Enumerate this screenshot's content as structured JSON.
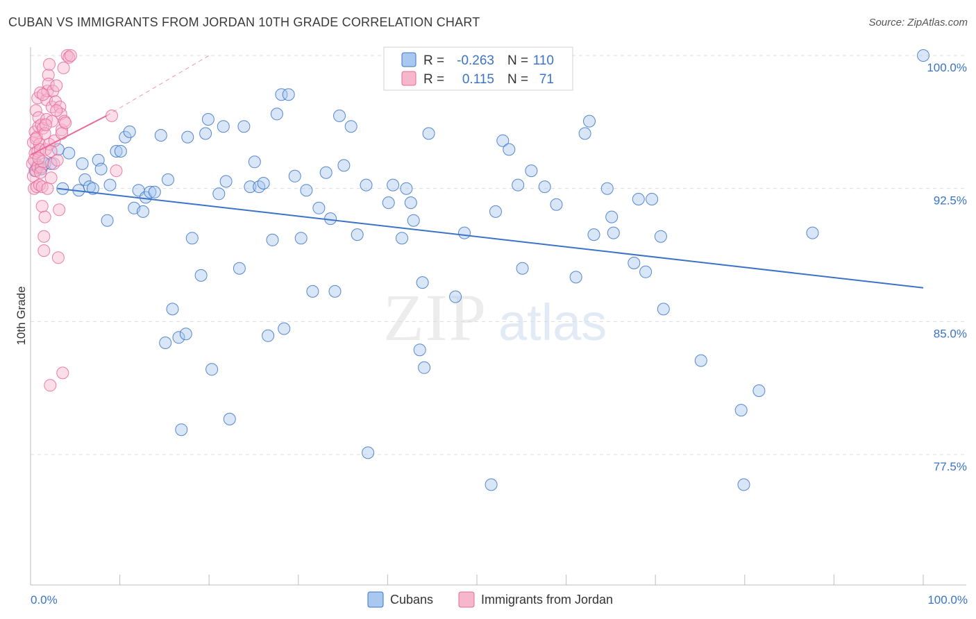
{
  "title": "CUBAN VS IMMIGRANTS FROM JORDAN 10TH GRADE CORRELATION CHART",
  "source": "Source: ZipAtlas.com",
  "colors": {
    "blue": "#3b73c7",
    "blue_fill": "#a9c8ef",
    "pink": "#e8699a",
    "pink_fill": "#f6b6cb",
    "grid": "#dcdcdc"
  },
  "chart_data": {
    "type": "scatter",
    "title": "CUBAN VS IMMIGRANTS FROM JORDAN 10TH GRADE CORRELATION CHART",
    "xlabel": "",
    "ylabel": "10th Grade",
    "xlim": [
      0,
      100
    ],
    "ylim": [
      70,
      100.8
    ],
    "x_tick_labels": {
      "left": "0.0%",
      "right": "100.0%"
    },
    "y_ticks": [
      {
        "value": 100.0,
        "label": "100.0%"
      },
      {
        "value": 92.5,
        "label": "92.5%"
      },
      {
        "value": 85.0,
        "label": "85.0%"
      },
      {
        "value": 77.5,
        "label": "77.5%"
      }
    ],
    "watermark": {
      "zip": "ZIP",
      "atlas": "atlas"
    },
    "legend": [
      {
        "series": "Cubans",
        "r_label": "R =",
        "r_value": "-0.263",
        "n_label": "N =",
        "n_value": "110"
      },
      {
        "series": "Immigrants from Jordan",
        "r_label": "R =",
        "r_value": "0.115",
        "n_label": "N =",
        "n_value": "71"
      }
    ],
    "series": [
      {
        "name": "Cubans",
        "color": "#3b73c7",
        "trendline": {
          "x": [
            3.0,
            100.0
          ],
          "y": [
            92.5,
            86.9
          ]
        },
        "points": [
          [
            0.5,
            93.5
          ],
          [
            0.8,
            93.8
          ],
          [
            1.2,
            93.6
          ],
          [
            1.6,
            93.9
          ],
          [
            2.3,
            93.9
          ],
          [
            3.1,
            94.7
          ],
          [
            4.3,
            94.5
          ],
          [
            5.8,
            93.9
          ],
          [
            3.6,
            92.5
          ],
          [
            5.4,
            92.4
          ],
          [
            6.1,
            93.0
          ],
          [
            6.6,
            92.6
          ],
          [
            7.0,
            92.5
          ],
          [
            7.6,
            94.1
          ],
          [
            7.9,
            93.6
          ],
          [
            8.6,
            90.7
          ],
          [
            8.9,
            92.7
          ],
          [
            9.6,
            94.6
          ],
          [
            10.1,
            94.6
          ],
          [
            10.6,
            95.4
          ],
          [
            11.1,
            95.7
          ],
          [
            11.6,
            91.4
          ],
          [
            12.1,
            92.4
          ],
          [
            12.6,
            91.2
          ],
          [
            12.9,
            92.0
          ],
          [
            13.4,
            92.3
          ],
          [
            13.9,
            92.3
          ],
          [
            14.6,
            95.5
          ],
          [
            15.1,
            83.8
          ],
          [
            15.4,
            93.0
          ],
          [
            15.9,
            85.7
          ],
          [
            16.6,
            84.1
          ],
          [
            16.9,
            78.9
          ],
          [
            17.4,
            84.3
          ],
          [
            17.6,
            95.4
          ],
          [
            18.1,
            89.7
          ],
          [
            19.1,
            87.6
          ],
          [
            19.6,
            95.6
          ],
          [
            19.9,
            96.4
          ],
          [
            20.3,
            82.3
          ],
          [
            21.1,
            92.2
          ],
          [
            21.6,
            96.0
          ],
          [
            21.9,
            92.9
          ],
          [
            22.3,
            79.5
          ],
          [
            23.4,
            88.0
          ],
          [
            23.9,
            96.0
          ],
          [
            24.6,
            92.6
          ],
          [
            25.1,
            94.0
          ],
          [
            25.6,
            92.6
          ],
          [
            26.1,
            92.8
          ],
          [
            26.6,
            84.2
          ],
          [
            27.1,
            89.6
          ],
          [
            27.6,
            96.7
          ],
          [
            28.1,
            97.8
          ],
          [
            28.4,
            84.6
          ],
          [
            28.9,
            97.8
          ],
          [
            29.6,
            93.2
          ],
          [
            30.3,
            89.7
          ],
          [
            30.9,
            92.4
          ],
          [
            31.6,
            86.7
          ],
          [
            32.3,
            91.4
          ],
          [
            33.1,
            93.4
          ],
          [
            33.6,
            90.8
          ],
          [
            34.1,
            86.7
          ],
          [
            34.6,
            96.6
          ],
          [
            35.1,
            93.8
          ],
          [
            35.9,
            96.0
          ],
          [
            36.6,
            89.9
          ],
          [
            37.6,
            92.7
          ],
          [
            37.8,
            77.6
          ],
          [
            40.1,
            91.7
          ],
          [
            40.6,
            92.7
          ],
          [
            41.6,
            89.7
          ],
          [
            42.1,
            92.5
          ],
          [
            42.6,
            91.7
          ],
          [
            42.9,
            90.7
          ],
          [
            43.6,
            83.4
          ],
          [
            43.9,
            87.2
          ],
          [
            44.1,
            82.4
          ],
          [
            44.6,
            95.6
          ],
          [
            47.6,
            86.4
          ],
          [
            48.6,
            90.0
          ],
          [
            51.6,
            75.8
          ],
          [
            52.1,
            91.2
          ],
          [
            52.9,
            95.2
          ],
          [
            53.6,
            94.7
          ],
          [
            54.6,
            92.7
          ],
          [
            55.1,
            88.0
          ],
          [
            56.1,
            93.5
          ],
          [
            57.6,
            92.6
          ],
          [
            58.9,
            91.6
          ],
          [
            61.1,
            87.5
          ],
          [
            62.1,
            95.6
          ],
          [
            62.6,
            96.3
          ],
          [
            63.1,
            89.9
          ],
          [
            64.6,
            92.5
          ],
          [
            65.1,
            90.9
          ],
          [
            65.3,
            90.0
          ],
          [
            67.6,
            88.3
          ],
          [
            68.1,
            91.9
          ],
          [
            68.9,
            87.8
          ],
          [
            69.6,
            91.9
          ],
          [
            70.6,
            89.8
          ],
          [
            70.9,
            85.7
          ],
          [
            75.1,
            82.8
          ],
          [
            79.6,
            80.0
          ],
          [
            79.9,
            75.8
          ],
          [
            81.6,
            81.1
          ],
          [
            87.6,
            90.0
          ],
          [
            100.0,
            100.0
          ]
        ]
      },
      {
        "name": "Immigrants from Jordan",
        "color": "#e8699a",
        "trendline": {
          "x": [
            0.0,
            8.5
          ],
          "y": [
            94.4,
            96.6
          ]
        },
        "trendline_extension": {
          "x": [
            8.5,
            20.0
          ],
          "y": [
            96.6,
            100.0
          ]
        },
        "points": [
          [
            0.2,
            93.9
          ],
          [
            0.3,
            95.1
          ],
          [
            0.3,
            93.2
          ],
          [
            0.4,
            92.5
          ],
          [
            0.4,
            94.1
          ],
          [
            0.5,
            95.7
          ],
          [
            0.5,
            94.5
          ],
          [
            0.6,
            96.9
          ],
          [
            0.6,
            93.5
          ],
          [
            0.7,
            92.6
          ],
          [
            0.7,
            95.4
          ],
          [
            0.8,
            97.6
          ],
          [
            0.8,
            93.7
          ],
          [
            0.8,
            94.6
          ],
          [
            0.9,
            96.0
          ],
          [
            0.9,
            96.5
          ],
          [
            1.0,
            95.0
          ],
          [
            1.0,
            92.7
          ],
          [
            1.1,
            94.7
          ],
          [
            1.1,
            97.9
          ],
          [
            1.2,
            93.7
          ],
          [
            1.2,
            96.1
          ],
          [
            1.3,
            92.6
          ],
          [
            1.3,
            91.5
          ],
          [
            1.4,
            95.9
          ],
          [
            1.4,
            94.0
          ],
          [
            1.5,
            89.8
          ],
          [
            1.5,
            89.0
          ],
          [
            1.6,
            90.9
          ],
          [
            1.6,
            95.6
          ],
          [
            1.7,
            94.7
          ],
          [
            1.8,
            97.5
          ],
          [
            1.8,
            96.4
          ],
          [
            1.9,
            92.5
          ],
          [
            1.9,
            98.0
          ],
          [
            2.0,
            98.9
          ],
          [
            2.0,
            98.4
          ],
          [
            2.1,
            99.5
          ],
          [
            2.1,
            95.0
          ],
          [
            2.2,
            81.4
          ],
          [
            2.3,
            93.1
          ],
          [
            2.3,
            94.6
          ],
          [
            2.4,
            97.1
          ],
          [
            2.5,
            98.0
          ],
          [
            2.6,
            93.9
          ],
          [
            2.7,
            95.2
          ],
          [
            2.8,
            97.4
          ],
          [
            2.9,
            98.3
          ],
          [
            3.0,
            94.1
          ],
          [
            3.1,
            88.6
          ],
          [
            3.2,
            91.3
          ],
          [
            3.3,
            97.1
          ],
          [
            3.4,
            96.7
          ],
          [
            3.5,
            95.8
          ],
          [
            3.6,
            82.1
          ],
          [
            3.7,
            99.3
          ],
          [
            3.8,
            96.3
          ],
          [
            3.9,
            96.2
          ],
          [
            4.1,
            100.0
          ],
          [
            4.3,
            99.9
          ],
          [
            4.5,
            100.0
          ],
          [
            9.1,
            96.6
          ],
          [
            9.6,
            93.5
          ],
          [
            1.4,
            97.8
          ],
          [
            0.9,
            94.2
          ],
          [
            2.4,
            96.3
          ],
          [
            0.6,
            95.3
          ],
          [
            1.7,
            96.1
          ],
          [
            2.9,
            96.9
          ],
          [
            1.1,
            93.4
          ],
          [
            3.5,
            95.6
          ]
        ]
      }
    ]
  }
}
